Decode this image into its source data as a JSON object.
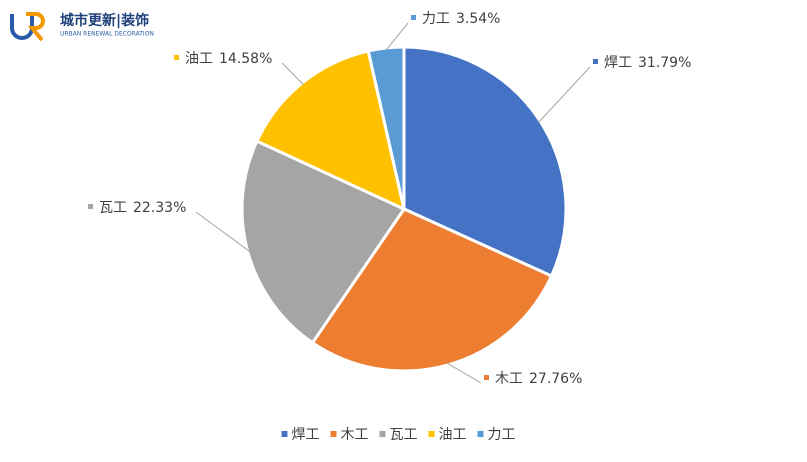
{
  "logo": {
    "name": "城市更新|装饰",
    "subtitle": "URBAN RENEWAL DECORATION"
  },
  "chart_data": {
    "type": "pie",
    "categories": [
      "焊工",
      "木工",
      "瓦工",
      "油工",
      "力工"
    ],
    "values": [
      31.79,
      27.76,
      22.33,
      14.58,
      3.54
    ],
    "value_labels": [
      "31.79%",
      "27.76%",
      "22.33%",
      "14.58%",
      "3.54%"
    ],
    "colors": [
      "#4472c4",
      "#ed7d31",
      "#a5a5a5",
      "#ffc000",
      "#5b9bd5"
    ],
    "legend": "bottom"
  }
}
